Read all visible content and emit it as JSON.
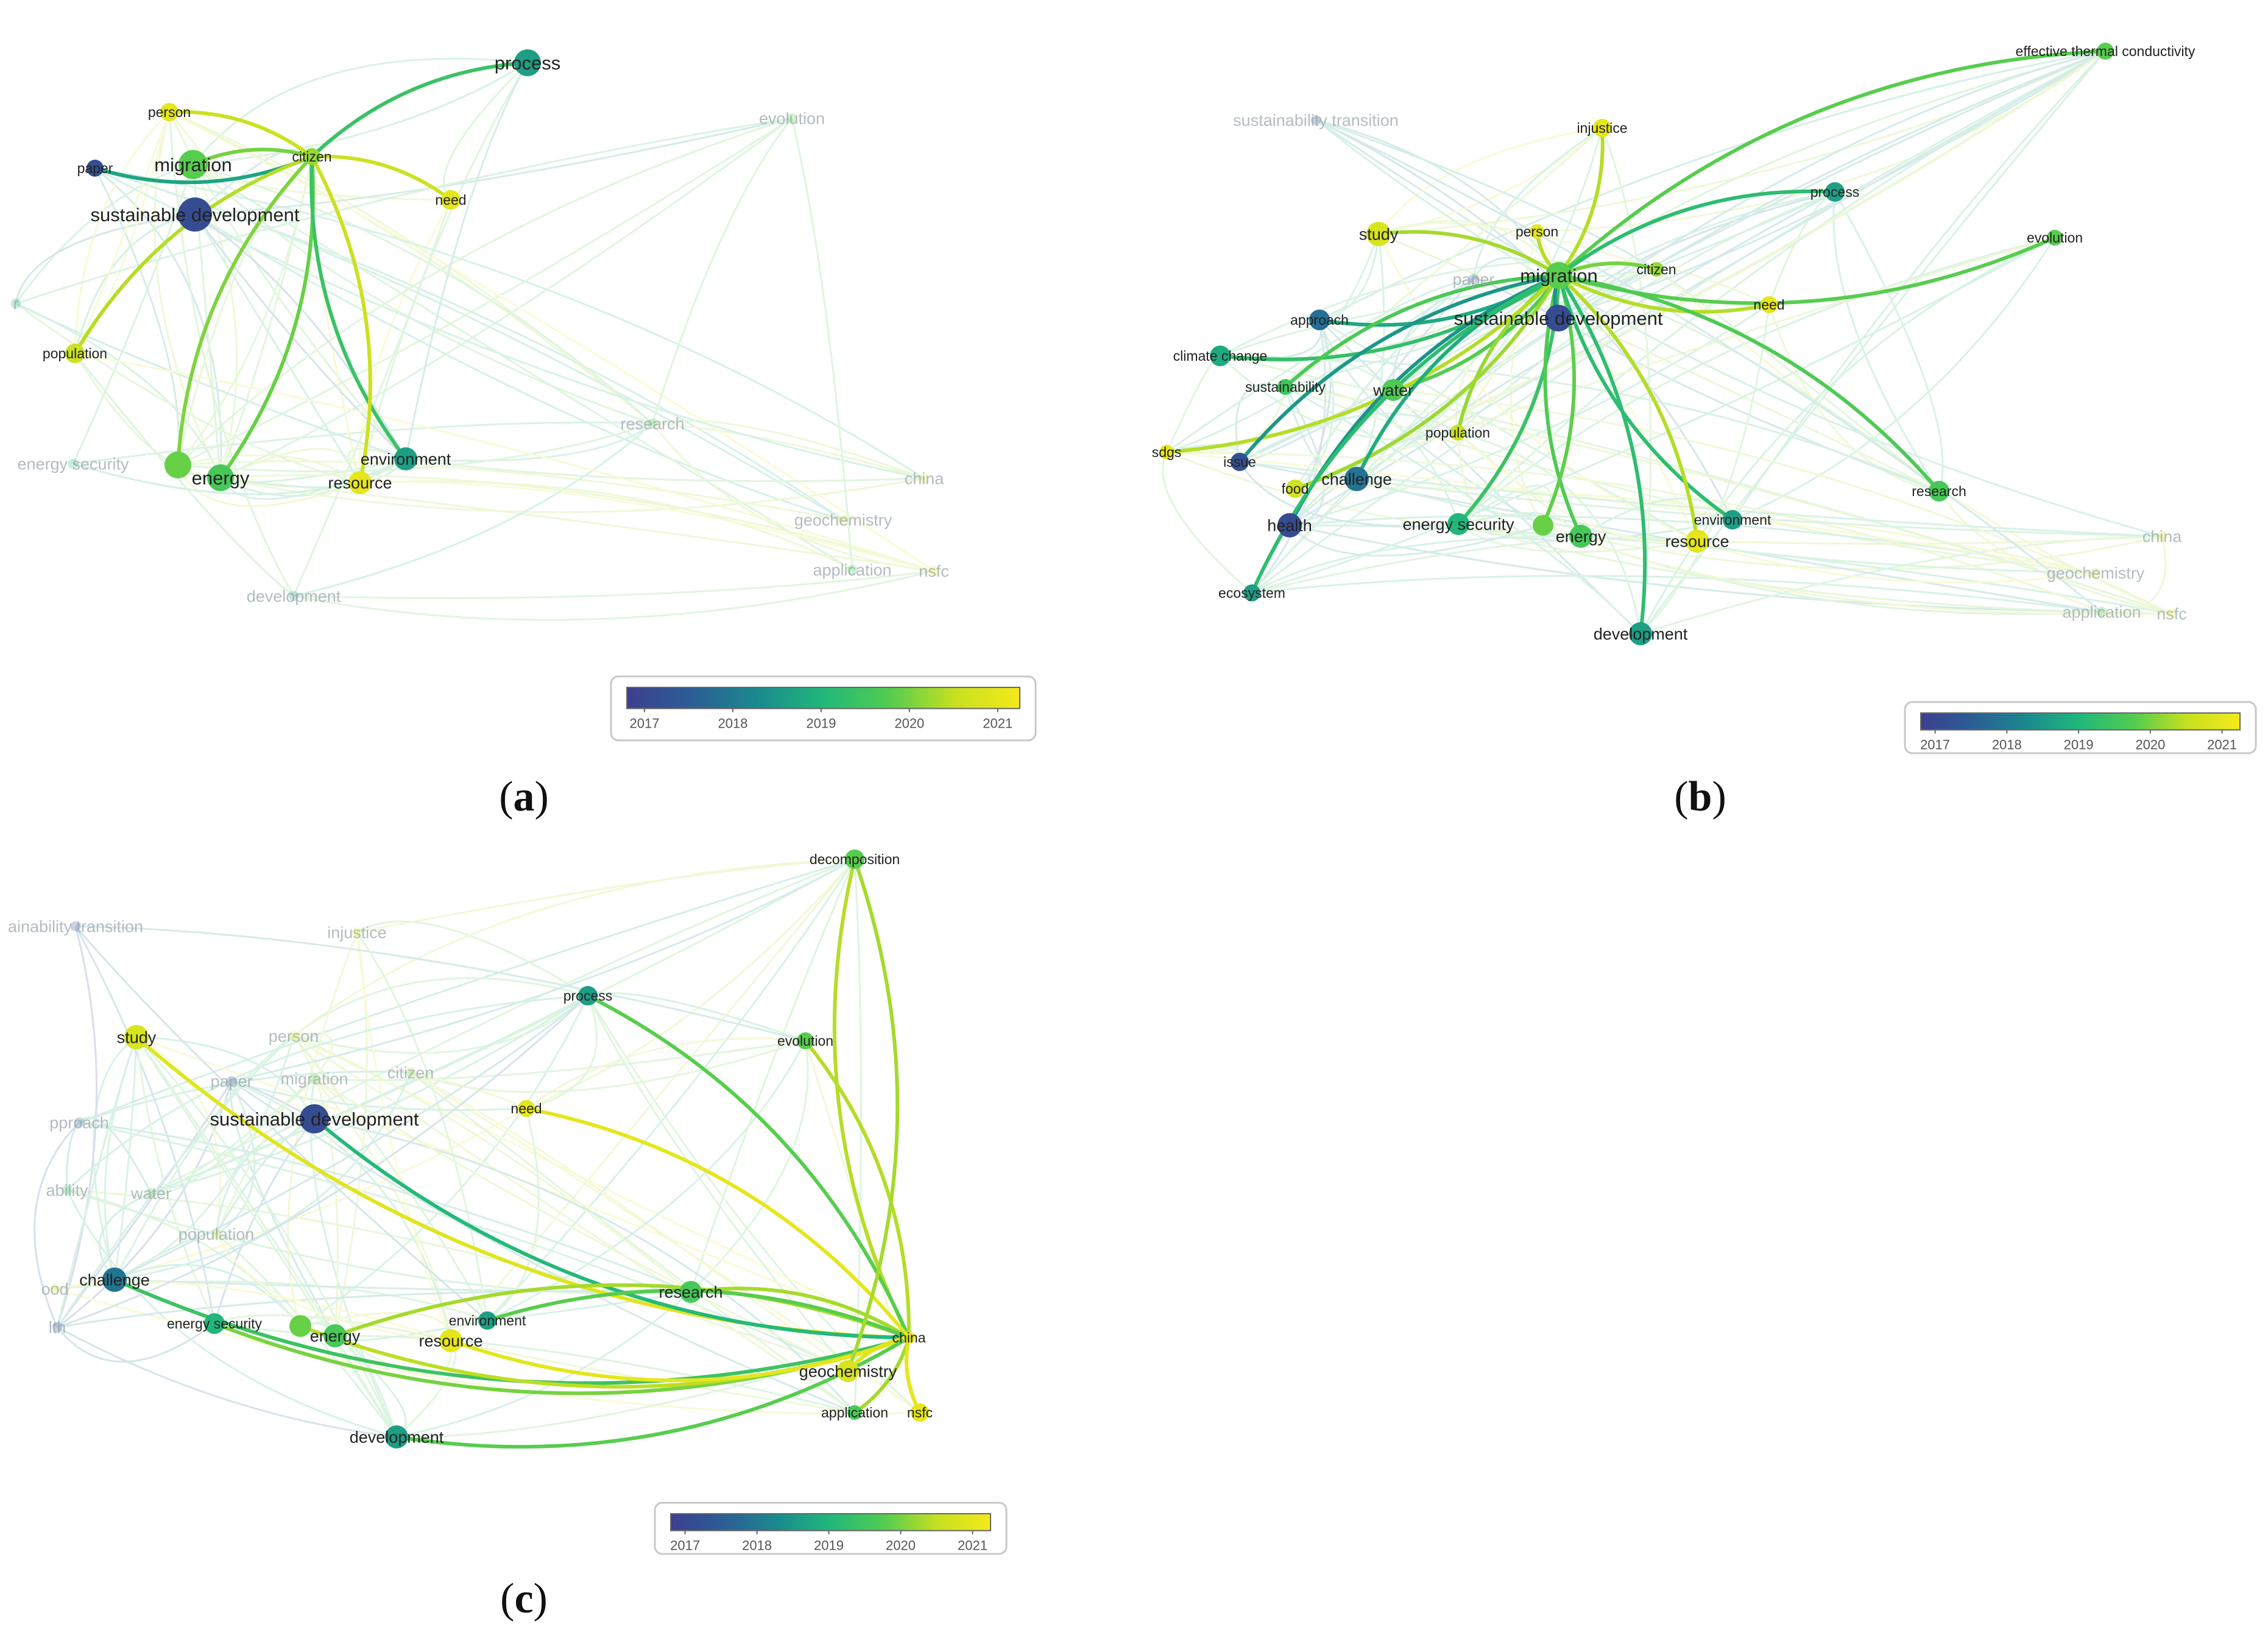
{
  "figure": {
    "panels": [
      {
        "id": "a",
        "caption_letter": "a",
        "nodes": [
          {
            "id": "process",
            "label": "process",
            "year": 2018.6,
            "faint": false
          },
          {
            "id": "person",
            "label": "person",
            "year": 2021,
            "faint": false
          },
          {
            "id": "paper",
            "label": "paper",
            "year": 2017.2,
            "faint": false
          },
          {
            "id": "migration",
            "label": "migration",
            "year": 2019.8,
            "faint": false
          },
          {
            "id": "citizen",
            "label": "citizen",
            "year": 2020.2,
            "faint": false
          },
          {
            "id": "sustainable_development",
            "label": "sustainable development",
            "year": 2017.1,
            "faint": false
          },
          {
            "id": "need",
            "label": "need",
            "year": 2021,
            "faint": false
          },
          {
            "id": "population",
            "label": "population",
            "year": 2020.6,
            "faint": false
          },
          {
            "id": "energy_dot",
            "label": "",
            "year": 2019.9,
            "faint": false
          },
          {
            "id": "energy",
            "label": "energy",
            "year": 2019.6,
            "faint": false
          },
          {
            "id": "environment",
            "label": "environment",
            "year": 2018.6,
            "faint": false
          },
          {
            "id": "resource",
            "label": "resource",
            "year": 2021,
            "faint": false
          },
          {
            "id": "evolution",
            "label": "evolution",
            "year": 2019.8,
            "faint": true
          },
          {
            "id": "research",
            "label": "research",
            "year": 2019.6,
            "faint": true
          },
          {
            "id": "energy_security",
            "label": "energy security",
            "year": 2019,
            "faint": true
          },
          {
            "id": "china",
            "label": "china",
            "year": 2021,
            "faint": true
          },
          {
            "id": "geochemistry",
            "label": "geochemistry",
            "year": 2020.8,
            "faint": true
          },
          {
            "id": "application",
            "label": "application",
            "year": 2019.6,
            "faint": true
          },
          {
            "id": "nsfc",
            "label": "nsfc",
            "year": 2021,
            "faint": true
          },
          {
            "id": "development",
            "label": "development",
            "year": 2018.6,
            "faint": true
          },
          {
            "id": "cut_r",
            "label": "r",
            "year": 2019,
            "faint": true
          }
        ],
        "edges": [
          [
            "citizen",
            "process"
          ],
          [
            "citizen",
            "person"
          ],
          [
            "citizen",
            "paper"
          ],
          [
            "citizen",
            "migration"
          ],
          [
            "citizen",
            "need"
          ],
          [
            "citizen",
            "population"
          ],
          [
            "citizen",
            "energy"
          ],
          [
            "citizen",
            "environment"
          ],
          [
            "citizen",
            "resource"
          ],
          [
            "citizen",
            "energy_dot"
          ]
        ]
      },
      {
        "id": "b",
        "caption_letter": "b",
        "nodes": [
          {
            "id": "effective_thermal_conductivity",
            "label": "effective thermal conductivity",
            "year": 2019.8,
            "faint": false
          },
          {
            "id": "sustainability_transition",
            "label": "sustainability transition",
            "year": 2017.2,
            "faint": true
          },
          {
            "id": "injustice",
            "label": "injustice",
            "year": 2021,
            "faint": false
          },
          {
            "id": "process",
            "label": "process",
            "year": 2018.6,
            "faint": false
          },
          {
            "id": "study",
            "label": "study",
            "year": 2020.8,
            "faint": false
          },
          {
            "id": "person",
            "label": "person",
            "year": 2021,
            "faint": false
          },
          {
            "id": "evolution",
            "label": "evolution",
            "year": 2019.8,
            "faint": false
          },
          {
            "id": "paper",
            "label": "paper",
            "year": 2017.2,
            "faint": true
          },
          {
            "id": "migration",
            "label": "migration",
            "year": 2019.8,
            "faint": false
          },
          {
            "id": "citizen",
            "label": "citizen",
            "year": 2020.2,
            "faint": false
          },
          {
            "id": "approach",
            "label": "approach",
            "year": 2017.8,
            "faint": false
          },
          {
            "id": "sustainable_development",
            "label": "sustainable development",
            "year": 2017.1,
            "faint": false
          },
          {
            "id": "need",
            "label": "need",
            "year": 2021,
            "faint": false
          },
          {
            "id": "climate_change",
            "label": "climate change",
            "year": 2018.8,
            "faint": false
          },
          {
            "id": "sustainability",
            "label": "sustainability",
            "year": 2019.5,
            "faint": false
          },
          {
            "id": "water",
            "label": "water",
            "year": 2019.7,
            "faint": false
          },
          {
            "id": "population",
            "label": "population",
            "year": 2020.6,
            "faint": false
          },
          {
            "id": "sdgs",
            "label": "sdgs",
            "year": 2021,
            "faint": false
          },
          {
            "id": "issue",
            "label": "issue",
            "year": 2017.2,
            "faint": false
          },
          {
            "id": "food",
            "label": "food",
            "year": 2020.7,
            "faint": false
          },
          {
            "id": "challenge",
            "label": "challenge",
            "year": 2017.9,
            "faint": false
          },
          {
            "id": "research",
            "label": "research",
            "year": 2019.6,
            "faint": false
          },
          {
            "id": "health",
            "label": "health",
            "year": 2017.1,
            "faint": false
          },
          {
            "id": "energy_security",
            "label": "energy security",
            "year": 2019,
            "faint": false
          },
          {
            "id": "energy_dot",
            "label": "",
            "year": 2019.9,
            "faint": false
          },
          {
            "id": "energy",
            "label": "energy",
            "year": 2019.6,
            "faint": false
          },
          {
            "id": "environment",
            "label": "environment",
            "year": 2018.6,
            "faint": false
          },
          {
            "id": "resource",
            "label": "resource",
            "year": 2021,
            "faint": false
          },
          {
            "id": "china",
            "label": "china",
            "year": 2021,
            "faint": true
          },
          {
            "id": "geochemistry",
            "label": "geochemistry",
            "year": 2020.8,
            "faint": true
          },
          {
            "id": "application",
            "label": "application",
            "year": 2019.6,
            "faint": true
          },
          {
            "id": "nsfc",
            "label": "nsfc",
            "year": 2021,
            "faint": true
          },
          {
            "id": "ecosystem",
            "label": "ecosystem",
            "year": 2018.6,
            "faint": false
          },
          {
            "id": "development",
            "label": "development",
            "year": 2018.6,
            "faint": false
          }
        ],
        "edges": [
          [
            "migration",
            "effective_thermal_conductivity"
          ],
          [
            "migration",
            "injustice"
          ],
          [
            "migration",
            "process"
          ],
          [
            "migration",
            "study"
          ],
          [
            "migration",
            "person"
          ],
          [
            "migration",
            "evolution"
          ],
          [
            "migration",
            "approach"
          ],
          [
            "migration",
            "need"
          ],
          [
            "migration",
            "climate_change"
          ],
          [
            "migration",
            "sustainability"
          ],
          [
            "migration",
            "water"
          ],
          [
            "migration",
            "population"
          ],
          [
            "migration",
            "sdgs"
          ],
          [
            "migration",
            "issue"
          ],
          [
            "migration",
            "food"
          ],
          [
            "migration",
            "challenge"
          ],
          [
            "migration",
            "research"
          ],
          [
            "migration",
            "health"
          ],
          [
            "migration",
            "energy_security"
          ],
          [
            "migration",
            "energy"
          ],
          [
            "migration",
            "energy_dot"
          ],
          [
            "migration",
            "environment"
          ],
          [
            "migration",
            "resource"
          ],
          [
            "migration",
            "ecosystem"
          ],
          [
            "migration",
            "development"
          ],
          [
            "migration",
            "sustainable_development"
          ],
          [
            "migration",
            "citizen"
          ]
        ]
      },
      {
        "id": "c",
        "caption_letter": "c",
        "nodes": [
          {
            "id": "decomposition",
            "label": "decomposition",
            "year": 2019.8,
            "faint": false
          },
          {
            "id": "sustainability_transition",
            "label": "ainability transition",
            "year": 2017.2,
            "faint": true
          },
          {
            "id": "injustice",
            "label": "injustice",
            "year": 2021,
            "faint": true
          },
          {
            "id": "process",
            "label": "process",
            "year": 2018.6,
            "faint": false
          },
          {
            "id": "study",
            "label": "study",
            "year": 2020.8,
            "faint": false
          },
          {
            "id": "person",
            "label": "person",
            "year": 2021,
            "faint": true
          },
          {
            "id": "evolution",
            "label": "evolution",
            "year": 2019.8,
            "faint": false
          },
          {
            "id": "paper",
            "label": "paper",
            "year": 2017.2,
            "faint": true
          },
          {
            "id": "migration",
            "label": "migration",
            "year": 2019.8,
            "faint": true
          },
          {
            "id": "citizen",
            "label": "citizen",
            "year": 2020.2,
            "faint": true
          },
          {
            "id": "approach",
            "label": "pproach",
            "year": 2017.8,
            "faint": true
          },
          {
            "id": "sustainable_development",
            "label": "sustainable development",
            "year": 2017.1,
            "faint": false
          },
          {
            "id": "need",
            "label": "need",
            "year": 2021,
            "faint": false
          },
          {
            "id": "sustainability",
            "label": "ability",
            "year": 2019.5,
            "faint": true
          },
          {
            "id": "water",
            "label": "water",
            "year": 2019.7,
            "faint": true
          },
          {
            "id": "population",
            "label": "population",
            "year": 2020.6,
            "faint": true
          },
          {
            "id": "food",
            "label": "ood",
            "year": 2020.7,
            "faint": true
          },
          {
            "id": "challenge",
            "label": "challenge",
            "year": 2017.9,
            "faint": false
          },
          {
            "id": "health",
            "label": "lth",
            "year": 2017.1,
            "faint": true
          },
          {
            "id": "research",
            "label": "research",
            "year": 2019.6,
            "faint": false
          },
          {
            "id": "energy_security",
            "label": "energy security",
            "year": 2019,
            "faint": false
          },
          {
            "id": "energy_dot",
            "label": "",
            "year": 2019.9,
            "faint": false
          },
          {
            "id": "energy",
            "label": "energy",
            "year": 2019.6,
            "faint": false
          },
          {
            "id": "environment",
            "label": "environment",
            "year": 2018.6,
            "faint": false
          },
          {
            "id": "resource",
            "label": "resource",
            "year": 2021,
            "faint": false
          },
          {
            "id": "china",
            "label": "china",
            "year": 2021,
            "faint": false
          },
          {
            "id": "geochemistry",
            "label": "geochemistry",
            "year": 2020.8,
            "faint": false
          },
          {
            "id": "application",
            "label": "application",
            "year": 2019.6,
            "faint": false
          },
          {
            "id": "nsfc",
            "label": "nsfc",
            "year": 2021,
            "faint": false
          },
          {
            "id": "development",
            "label": "development",
            "year": 2018.6,
            "faint": false
          }
        ],
        "edges": [
          [
            "china",
            "decomposition"
          ],
          [
            "china",
            "process"
          ],
          [
            "china",
            "study"
          ],
          [
            "china",
            "evolution"
          ],
          [
            "china",
            "sustainable_development"
          ],
          [
            "china",
            "need"
          ],
          [
            "china",
            "challenge"
          ],
          [
            "china",
            "research"
          ],
          [
            "china",
            "energy_security"
          ],
          [
            "china",
            "energy"
          ],
          [
            "china",
            "energy_dot"
          ],
          [
            "china",
            "environment"
          ],
          [
            "china",
            "resource"
          ],
          [
            "china",
            "geochemistry"
          ],
          [
            "china",
            "application"
          ],
          [
            "china",
            "nsfc"
          ],
          [
            "china",
            "development"
          ],
          [
            "geochemistry",
            "decomposition"
          ]
        ]
      }
    ],
    "color_legend": {
      "ticks": [
        "2017",
        "2018",
        "2019",
        "2020",
        "2021"
      ],
      "min_year": 2016.8,
      "max_year": 2021.25,
      "stops": [
        "#3d3f8f",
        "#2b5e95",
        "#1a8a8e",
        "#21b87a",
        "#52cc50",
        "#c6e020",
        "#f5e91b"
      ]
    }
  }
}
